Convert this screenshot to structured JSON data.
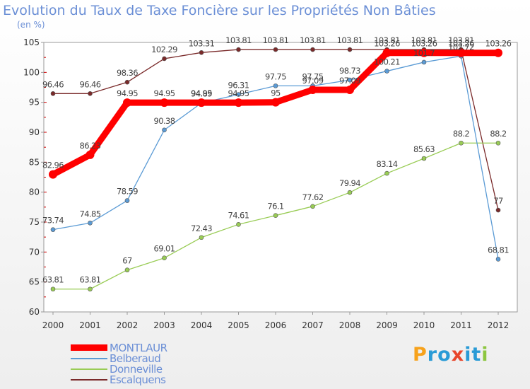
{
  "chart_data": {
    "type": "line",
    "title": "Evolution du Taux de Taxe Foncière sur les Propriétés Non Bâties",
    "unit_label": "(en %)",
    "xlabel": "",
    "ylabel": "",
    "ylim": [
      60,
      105
    ],
    "yticks": [
      60,
      65,
      70,
      75,
      80,
      85,
      90,
      95,
      100,
      105
    ],
    "categories": [
      "2000",
      "2001",
      "2002",
      "2003",
      "2004",
      "2005",
      "2006",
      "2007",
      "2008",
      "2009",
      "2010",
      "2011",
      "2012"
    ],
    "series": [
      {
        "name": "MONTLAUR",
        "color": "#ff0000",
        "values": [
          82.96,
          86.23,
          94.95,
          94.95,
          94.95,
          94.95,
          95,
          97.09,
          97.09,
          103.26,
          103.26,
          103.26,
          103.26
        ],
        "labels": [
          "82.96",
          "86.23",
          "94.95",
          "94.95",
          "94.95",
          "94.95",
          "95",
          "97.09",
          "97.09",
          "103.26",
          "103.26",
          "103.26",
          "103.26"
        ]
      },
      {
        "name": "Belberaud",
        "color": "#5b9bd5",
        "values": [
          73.74,
          74.85,
          78.59,
          90.38,
          94.89,
          96.31,
          97.75,
          97.75,
          98.73,
          100.21,
          101.7,
          102.72,
          68.81
        ],
        "labels": [
          "73.74",
          "74.85",
          "78.59",
          "90.38",
          "94.89",
          "96.31",
          "97.75",
          "97.75",
          "98.73",
          "100.21",
          "101.7",
          "102.72",
          "68.81"
        ]
      },
      {
        "name": "Donneville",
        "color": "#99cc55",
        "values": [
          63.81,
          63.81,
          67,
          69.01,
          72.43,
          74.61,
          76.1,
          77.62,
          79.94,
          83.14,
          85.63,
          88.2,
          88.2
        ],
        "labels": [
          "63.81",
          "63.81",
          "67",
          "69.01",
          "72.43",
          "74.61",
          "76.1",
          "77.62",
          "79.94",
          "83.14",
          "85.63",
          "88.2",
          "88.2"
        ]
      },
      {
        "name": "Escalquens",
        "color": "#7a2a2a",
        "values": [
          96.46,
          96.46,
          98.36,
          102.29,
          103.31,
          103.81,
          103.81,
          103.81,
          103.81,
          103.81,
          103.81,
          103.81,
          77
        ],
        "labels": [
          "96.46",
          "96.46",
          "98.36",
          "102.29",
          "103.31",
          "103.81",
          "103.81",
          "103.81",
          "103.81",
          "103.81",
          "103.81",
          "103.81",
          "77"
        ]
      }
    ],
    "legend_position": "bottom-left"
  },
  "logo": {
    "letters": [
      "P",
      "r",
      "o",
      "x",
      "i",
      "t",
      "i"
    ],
    "colors": [
      "#f7a21b",
      "#2a9bd6",
      "#2a9bd6",
      "#e8462b",
      "#2a9bd6",
      "#2a9bd6",
      "#8cc63f"
    ]
  }
}
